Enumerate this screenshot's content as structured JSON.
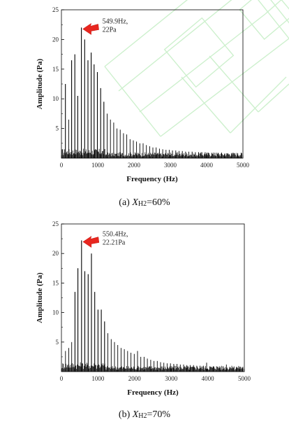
{
  "chart_data": [
    {
      "type": "bar",
      "xlabel": "Frequency (Hz)",
      "ylabel": "Amplitude (Pa)",
      "xlim": [
        0,
        5000
      ],
      "ylim": [
        0,
        25
      ],
      "xticks": [
        "0",
        "1000",
        "2000",
        "3000",
        "4000",
        "5000"
      ],
      "yticks": [
        "5",
        "10",
        "15",
        "20",
        "25"
      ],
      "annotation": {
        "line1": "549.9Hz,",
        "line2": "22Pa",
        "x": 549.9,
        "y": 22
      },
      "caption": {
        "prefix": "(a) ",
        "var": "X",
        "sub": "H2",
        "suffix": "=60%"
      },
      "watermark": true,
      "peaks_x": [
        110,
        200,
        280,
        370,
        450,
        549.9,
        640,
        730,
        820,
        900,
        990,
        1080,
        1170,
        1260,
        1350,
        1440,
        1530,
        1620,
        1710,
        1800,
        1890,
        1980,
        2070,
        2160,
        2250,
        2340,
        2430,
        2520,
        2610,
        2700,
        2790,
        2880,
        2970,
        3060,
        3150,
        3240,
        3330,
        3420,
        3510,
        3600,
        3690,
        3780,
        3870,
        3960,
        4050,
        4140,
        4230,
        4320,
        4410,
        4500,
        4590,
        4680,
        4770,
        4860,
        4950
      ],
      "peaks_y": [
        12.5,
        6.5,
        16.5,
        17.5,
        10.5,
        22,
        20,
        16.5,
        17.8,
        15.8,
        14.5,
        11.8,
        9.5,
        7.5,
        6.5,
        6,
        5,
        4.8,
        4.2,
        4,
        3.2,
        3,
        2.8,
        2.5,
        2.5,
        2.2,
        2,
        1.8,
        1.8,
        1.6,
        1.5,
        1.4,
        1.4,
        1.3,
        1.3,
        1.2,
        1.2,
        1.1,
        1.1,
        1.1,
        1,
        1,
        1,
        1,
        0.9,
        0.9,
        0.9,
        0.9,
        0.9,
        0.8,
        0.8,
        0.8,
        0.8,
        0.8,
        0.8
      ],
      "noise_floor": 0.8
    },
    {
      "type": "bar",
      "xlabel": "Frequency (Hz)",
      "ylabel": "Amplitude (Pa)",
      "xlim": [
        0,
        5000
      ],
      "ylim": [
        0,
        25
      ],
      "xticks": [
        "0",
        "1000",
        "2000",
        "3000",
        "4000",
        "5000"
      ],
      "yticks": [
        "5",
        "10",
        "15",
        "20",
        "25"
      ],
      "annotation": {
        "line1": "550.4Hz,",
        "line2": "22.21Pa",
        "x": 550.4,
        "y": 22.21
      },
      "caption": {
        "prefix": "(b) ",
        "var": "X",
        "sub": "H2",
        "suffix": "=70%"
      },
      "watermark": false,
      "peaks_x": [
        110,
        200,
        280,
        370,
        450,
        550.4,
        640,
        730,
        820,
        910,
        1000,
        1090,
        1180,
        1270,
        1360,
        1450,
        1540,
        1630,
        1720,
        1810,
        1900,
        1990,
        2080,
        2170,
        2260,
        2350,
        2440,
        2530,
        2620,
        2710,
        2800,
        2890,
        2980,
        3070,
        3160,
        3250,
        3340,
        3430,
        3520,
        3610,
        3700,
        3790,
        3880,
        3970,
        4060,
        4150,
        4240,
        4330,
        4420,
        4510,
        4600,
        4690,
        4780,
        4870,
        4960
      ],
      "peaks_y": [
        3.5,
        4,
        5,
        13.5,
        17.5,
        22.21,
        17,
        16.5,
        20,
        13.5,
        10.5,
        10.5,
        8.5,
        6.5,
        5.5,
        5,
        4.5,
        4,
        3.8,
        3.5,
        3.2,
        3,
        3.5,
        2.5,
        2.5,
        2.2,
        2,
        1.8,
        1.8,
        1.6,
        1.5,
        1.4,
        1.4,
        1.3,
        1.3,
        1.2,
        1.2,
        1.1,
        1.1,
        1.1,
        1,
        1,
        1,
        1.5,
        0.9,
        0.9,
        0.9,
        0.9,
        0.9,
        1.2,
        0.8,
        0.8,
        0.8,
        0.8,
        0.8
      ],
      "noise_floor": 0.8
    }
  ]
}
